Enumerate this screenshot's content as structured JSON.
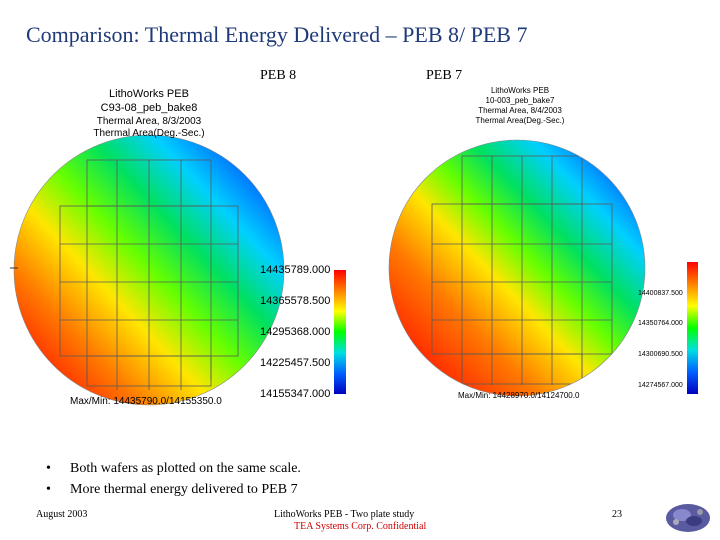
{
  "slide": {
    "title": "Comparison: Thermal Energy Delivered – PEB 8/ PEB 7",
    "label_left": "PEB 8",
    "label_right": "PEB 7",
    "page_number": "23"
  },
  "wafer_left": {
    "line1": "LithoWorks PEB",
    "line2": "C93-08_peb_bake8",
    "line3": "Thermal Area, 8/3/2003",
    "line4": "Thermal Area(Deg.-Sec.)",
    "maxmin": "Max/Min: 14435790.0/14155350.0",
    "ticks": [
      "14435789.000",
      "14365578.500",
      "14295368.000",
      "14225457.500",
      "14155347.000"
    ]
  },
  "wafer_right": {
    "line1": "LithoWorks PEB",
    "line2": "10-003_peb_bake7",
    "line3": "Thermal Area, 8/4/2003",
    "line4": "Thermal Area(Deg.-Sec.)",
    "maxmin": "Max/Min: 14428970.0/14124700.0",
    "ticks": [
      "14400837.500",
      "14350764.000",
      "14300690.500",
      "14274567.000"
    ]
  },
  "bullets": [
    "Both wafers as plotted on the same scale.",
    "More thermal energy delivered to PEB 7"
  ],
  "footer": {
    "date": "August 2003",
    "center1": "LithoWorks PEB - Two plate study",
    "center2": "TEA Systems Corp. Confidential"
  },
  "colors": {
    "title": "#1f3a7a",
    "confidential": "#cc0000"
  }
}
